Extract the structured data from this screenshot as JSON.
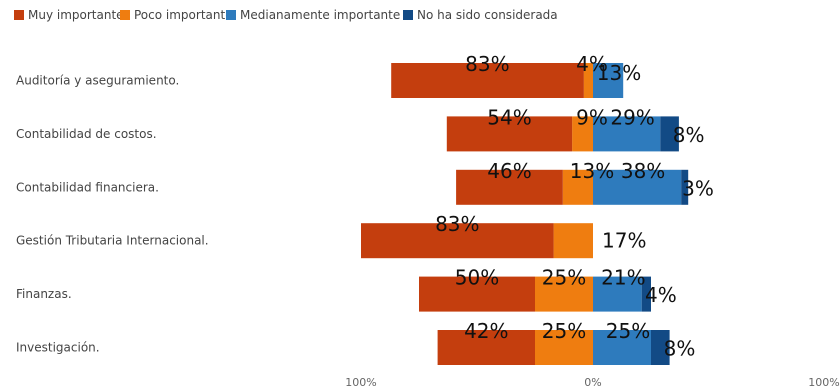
{
  "chart_data": {
    "type": "bar",
    "orientation": "horizontal-diverging",
    "legend_position": "top-left",
    "grid": false,
    "categories": [
      "Auditoría y aseguramiento.",
      "Contabilidad de costos.",
      "Contabilidad financiera.",
      "Gestión Tributaria Internacional.",
      "Finanzas.",
      "Investigación."
    ],
    "series": [
      {
        "name": "Muy importante",
        "color": "#c43e0e",
        "side": "negative",
        "values": [
          83,
          54,
          46,
          83,
          50,
          42
        ]
      },
      {
        "name": "Poco importante",
        "color": "#ef7d10",
        "side": "negative",
        "values": [
          4,
          9,
          13,
          17,
          25,
          25
        ]
      },
      {
        "name": "Medianamente importante",
        "color": "#2e7bbd",
        "side": "positive",
        "values": [
          13,
          29,
          38,
          0,
          21,
          25
        ]
      },
      {
        "name": "No ha sido considerada",
        "color": "#124a85",
        "side": "positive",
        "values": [
          0,
          8,
          3,
          0,
          4,
          8
        ]
      }
    ],
    "data_labels": [
      [
        "83%",
        "4%",
        "13%",
        ""
      ],
      [
        "54%",
        "9%",
        "29%",
        "8%"
      ],
      [
        "46%",
        "13%",
        "38%",
        "3%"
      ],
      [
        "83%",
        "17%",
        "",
        ""
      ],
      [
        "50%",
        "25%",
        "21%",
        "4%"
      ],
      [
        "42%",
        "25%",
        "25%",
        "8%"
      ]
    ],
    "x_ticks": [
      "100%",
      "0%",
      "100%"
    ],
    "xlim": [
      -100,
      100
    ]
  }
}
